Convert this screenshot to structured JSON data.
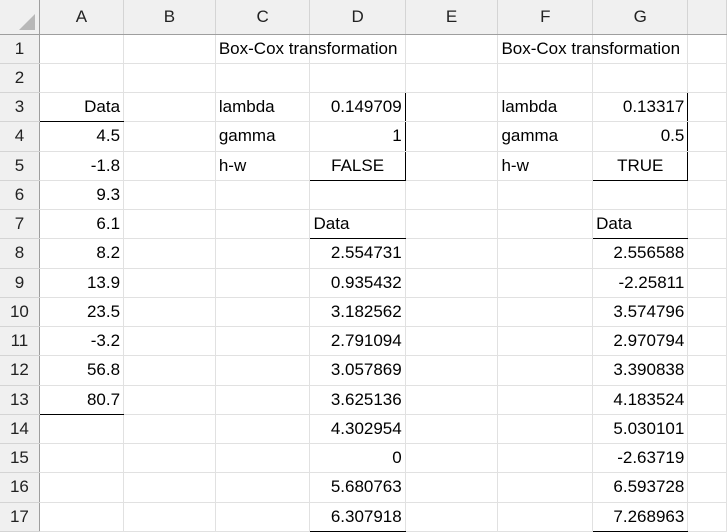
{
  "columns": [
    "A",
    "B",
    "C",
    "D",
    "E",
    "F",
    "G",
    ""
  ],
  "rows": [
    {
      "num": "1",
      "cells": [
        "",
        "",
        "Box-Cox transformation",
        "",
        "",
        "Box-Cox transformation",
        "",
        ""
      ]
    },
    {
      "num": "2",
      "cells": [
        "",
        "",
        "",
        "",
        "",
        "",
        "",
        ""
      ]
    },
    {
      "num": "3",
      "cells": [
        "Data",
        "",
        "lambda",
        "0.149709",
        "",
        "lambda",
        "0.13317",
        ""
      ]
    },
    {
      "num": "4",
      "cells": [
        "4.5",
        "",
        "gamma",
        "1",
        "",
        "gamma",
        "0.5",
        ""
      ]
    },
    {
      "num": "5",
      "cells": [
        "-1.8",
        "",
        "h-w",
        "FALSE",
        "",
        "h-w",
        "TRUE",
        ""
      ]
    },
    {
      "num": "6",
      "cells": [
        "9.3",
        "",
        "",
        "",
        "",
        "",
        "",
        ""
      ]
    },
    {
      "num": "7",
      "cells": [
        "6.1",
        "",
        "",
        "Data",
        "",
        "",
        "Data",
        ""
      ]
    },
    {
      "num": "8",
      "cells": [
        "8.2",
        "",
        "",
        "2.554731",
        "",
        "",
        "2.556588",
        ""
      ]
    },
    {
      "num": "9",
      "cells": [
        "13.9",
        "",
        "",
        "0.935432",
        "",
        "",
        "-2.25811",
        ""
      ]
    },
    {
      "num": "10",
      "cells": [
        "23.5",
        "",
        "",
        "3.182562",
        "",
        "",
        "3.574796",
        ""
      ]
    },
    {
      "num": "11",
      "cells": [
        "-3.2",
        "",
        "",
        "2.791094",
        "",
        "",
        "2.970794",
        ""
      ]
    },
    {
      "num": "12",
      "cells": [
        "56.8",
        "",
        "",
        "3.057869",
        "",
        "",
        "3.390838",
        ""
      ]
    },
    {
      "num": "13",
      "cells": [
        "80.7",
        "",
        "",
        "3.625136",
        "",
        "",
        "4.183524",
        ""
      ]
    },
    {
      "num": "14",
      "cells": [
        "",
        "",
        "",
        "4.302954",
        "",
        "",
        "5.030101",
        ""
      ]
    },
    {
      "num": "15",
      "cells": [
        "",
        "",
        "",
        "0",
        "",
        "",
        "-2.63719",
        ""
      ]
    },
    {
      "num": "16",
      "cells": [
        "",
        "",
        "",
        "5.680763",
        "",
        "",
        "6.593728",
        ""
      ]
    },
    {
      "num": "17",
      "cells": [
        "",
        "",
        "",
        "6.307918",
        "",
        "",
        "7.268963",
        ""
      ]
    }
  ]
}
